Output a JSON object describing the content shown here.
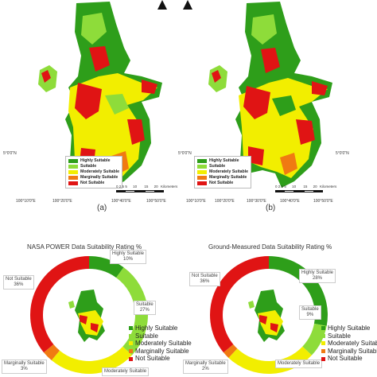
{
  "colors": {
    "highly_suitable": "#2e9e1a",
    "suitable": "#8edc3a",
    "moderately_suitable": "#f2ee00",
    "marginally_suitable": "#f07a12",
    "not_suitable": "#e01414"
  },
  "map_a": {
    "caption": "(a)",
    "lat_tick": "5°0'0\"N",
    "lon_ticks": [
      "100°10'0\"E",
      "100°20'0\"E",
      "100°40'0\"E",
      "100°50'0\"E"
    ],
    "scale_labels": [
      "0",
      "2.5",
      "5",
      "10",
      "15",
      "20"
    ],
    "scale_unit": "Kilometers",
    "legend": [
      "Highly Suitable",
      "Suitable",
      "Moderately Suitable",
      "Marginally Suitable",
      "Not Suitable"
    ],
    "north_icon": "north-arrow-icon"
  },
  "map_b": {
    "caption": "(b)",
    "lat_tick_left": "5°0'0\"N",
    "lat_tick_right": "5°0'0\"N",
    "lon_ticks": [
      "100°10'0\"E",
      "100°20'0\"E",
      "100°30'0\"E",
      "100°40'0\"E",
      "100°50'0\"E"
    ],
    "scale_labels": [
      "0",
      "2.5",
      "5",
      "10",
      "15",
      "20"
    ],
    "scale_unit": "Kilometers",
    "legend": [
      "Highly Suitable",
      "Suitable",
      "Moderately Suitable",
      "Marginally Suitable",
      "Not Suitable"
    ],
    "north_icon": "north-arrow-icon"
  },
  "chart_data": [
    {
      "type": "pie",
      "title": "NASA POWER Data Suitability Rating %",
      "categories": [
        "Highly Suitable",
        "Suitable",
        "Moderately Suitable",
        "Marginally Suitable",
        "Not Suitable"
      ],
      "values": [
        10,
        27,
        24,
        3,
        36
      ],
      "callouts": [
        {
          "name": "Highly Suitable",
          "value": "10%"
        },
        {
          "name": "Suitable",
          "value": "27%"
        },
        {
          "name": "Moderately Suitable",
          "value": ""
        },
        {
          "name": "Marginally Suitable",
          "value": "3%"
        },
        {
          "name": "Not Suitable",
          "value": "36%"
        }
      ],
      "legend": [
        "Highly Suitable",
        "Suitable",
        "Moderately Suitable",
        "Marginally Suitable",
        "Not Suitable"
      ]
    },
    {
      "type": "pie",
      "title": "Ground-Measured Data Suitability Rating %",
      "categories": [
        "Highly Suitable",
        "Suitable",
        "Moderately Suitable",
        "Marginally Suitable",
        "Not Suitable"
      ],
      "values": [
        28,
        9,
        25,
        2,
        36
      ],
      "callouts": [
        {
          "name": "Highly Suitable",
          "value": "28%"
        },
        {
          "name": "Suitable",
          "value": "9%"
        },
        {
          "name": "Moderately Suitable",
          "value": ""
        },
        {
          "name": "Marginally Suitable",
          "value": "2%"
        },
        {
          "name": "Not Suitable",
          "value": "36%"
        }
      ],
      "legend": [
        "Highly Suitable",
        "Suitable",
        "Moderately Suitable",
        "Marginally Suitable",
        "Not Suitable"
      ]
    }
  ]
}
